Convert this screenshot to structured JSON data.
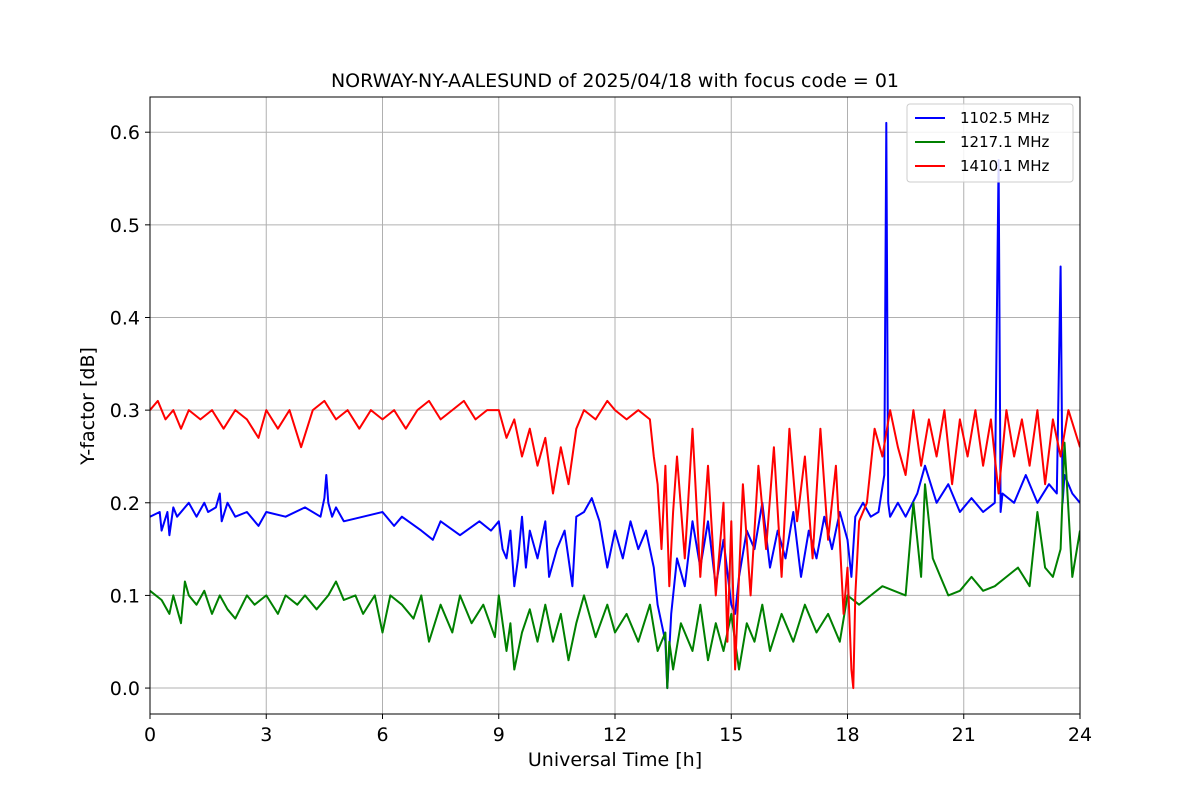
{
  "chart_data": {
    "type": "line",
    "title": "NORWAY-NY-AALESUND of 2025/04/18 with focus code = 01",
    "xlabel": "Universal Time [h]",
    "ylabel": "Y-factor [dB]",
    "xlim": [
      0,
      24
    ],
    "ylim": [
      -0.028,
      0.638
    ],
    "xticks": [
      0,
      3,
      6,
      9,
      12,
      15,
      18,
      21,
      24
    ],
    "xtick_labels": [
      "0",
      "3",
      "6",
      "9",
      "12",
      "15",
      "18",
      "21",
      "24"
    ],
    "yticks": [
      0.0,
      0.1,
      0.2,
      0.3,
      0.4,
      0.5,
      0.6
    ],
    "ytick_labels": [
      "0.0",
      "0.1",
      "0.2",
      "0.3",
      "0.4",
      "0.5",
      "0.6"
    ],
    "grid": true,
    "legend_position": "top-right",
    "series": [
      {
        "name": "1102.5 MHz",
        "color": "#0000ff",
        "x": [
          0.0,
          0.25,
          0.3,
          0.45,
          0.5,
          0.6,
          0.7,
          1.0,
          1.2,
          1.4,
          1.5,
          1.7,
          1.8,
          1.85,
          2.0,
          2.2,
          2.5,
          2.8,
          3.0,
          3.5,
          4.0,
          4.4,
          4.5,
          4.55,
          4.6,
          4.7,
          4.8,
          5.0,
          5.5,
          6.0,
          6.3,
          6.5,
          7.0,
          7.3,
          7.5,
          8.0,
          8.5,
          8.8,
          9.0,
          9.1,
          9.2,
          9.3,
          9.4,
          9.5,
          9.6,
          9.7,
          9.8,
          10.0,
          10.2,
          10.3,
          10.5,
          10.7,
          10.9,
          11.0,
          11.2,
          11.4,
          11.6,
          11.8,
          12.0,
          12.2,
          12.4,
          12.6,
          12.8,
          13.0,
          13.1,
          13.2,
          13.3,
          13.35,
          13.45,
          13.6,
          13.8,
          14.0,
          14.2,
          14.4,
          14.6,
          14.8,
          15.0,
          15.1,
          15.2,
          15.4,
          15.6,
          15.8,
          16.0,
          16.2,
          16.4,
          16.6,
          16.8,
          17.0,
          17.2,
          17.4,
          17.6,
          17.8,
          18.0,
          18.1,
          18.2,
          18.4,
          18.6,
          18.8,
          18.95,
          19.0,
          19.05,
          19.1,
          19.3,
          19.5,
          19.8,
          20.0,
          20.3,
          20.6,
          20.9,
          21.2,
          21.5,
          21.8,
          21.9,
          21.95,
          22.0,
          22.3,
          22.6,
          22.9,
          23.2,
          23.4,
          23.5,
          23.55,
          23.6,
          23.8,
          24.0
        ],
        "values": [
          0.185,
          0.19,
          0.17,
          0.19,
          0.165,
          0.195,
          0.185,
          0.2,
          0.185,
          0.2,
          0.19,
          0.195,
          0.21,
          0.18,
          0.2,
          0.185,
          0.19,
          0.175,
          0.19,
          0.185,
          0.195,
          0.185,
          0.205,
          0.23,
          0.2,
          0.185,
          0.195,
          0.18,
          0.185,
          0.19,
          0.175,
          0.185,
          0.17,
          0.16,
          0.18,
          0.165,
          0.18,
          0.17,
          0.18,
          0.15,
          0.14,
          0.17,
          0.11,
          0.14,
          0.185,
          0.13,
          0.17,
          0.14,
          0.18,
          0.12,
          0.15,
          0.17,
          0.11,
          0.185,
          0.19,
          0.205,
          0.18,
          0.13,
          0.17,
          0.14,
          0.18,
          0.15,
          0.17,
          0.13,
          0.09,
          0.07,
          0.05,
          0.0,
          0.08,
          0.14,
          0.11,
          0.18,
          0.13,
          0.18,
          0.11,
          0.16,
          0.09,
          0.08,
          0.12,
          0.17,
          0.15,
          0.2,
          0.13,
          0.17,
          0.14,
          0.19,
          0.12,
          0.17,
          0.14,
          0.185,
          0.15,
          0.19,
          0.16,
          0.12,
          0.185,
          0.2,
          0.185,
          0.19,
          0.23,
          0.61,
          0.2,
          0.185,
          0.2,
          0.185,
          0.21,
          0.24,
          0.2,
          0.22,
          0.19,
          0.205,
          0.19,
          0.2,
          0.57,
          0.19,
          0.21,
          0.2,
          0.23,
          0.2,
          0.22,
          0.21,
          0.455,
          0.2,
          0.23,
          0.21,
          0.2
        ]
      },
      {
        "name": "1217.1 MHz",
        "color": "#008000",
        "x": [
          0.0,
          0.3,
          0.5,
          0.6,
          0.8,
          0.9,
          1.0,
          1.2,
          1.4,
          1.6,
          1.8,
          2.0,
          2.2,
          2.5,
          2.7,
          3.0,
          3.3,
          3.5,
          3.8,
          4.0,
          4.3,
          4.6,
          4.8,
          5.0,
          5.3,
          5.5,
          5.8,
          6.0,
          6.2,
          6.5,
          6.8,
          7.0,
          7.2,
          7.5,
          7.8,
          8.0,
          8.3,
          8.6,
          8.9,
          9.0,
          9.2,
          9.3,
          9.4,
          9.6,
          9.8,
          10.0,
          10.2,
          10.4,
          10.6,
          10.8,
          11.0,
          11.2,
          11.5,
          11.8,
          12.0,
          12.3,
          12.6,
          12.9,
          13.1,
          13.3,
          13.35,
          13.4,
          13.5,
          13.7,
          14.0,
          14.2,
          14.4,
          14.6,
          14.8,
          15.0,
          15.2,
          15.4,
          15.6,
          15.8,
          16.0,
          16.3,
          16.6,
          16.9,
          17.2,
          17.5,
          17.8,
          18.0,
          18.3,
          18.6,
          18.9,
          19.2,
          19.5,
          19.7,
          19.8,
          19.9,
          20.0,
          20.2,
          20.4,
          20.6,
          20.9,
          21.2,
          21.5,
          21.8,
          22.1,
          22.4,
          22.7,
          22.9,
          23.1,
          23.3,
          23.5,
          23.6,
          23.8,
          24.0
        ],
        "values": [
          0.105,
          0.095,
          0.08,
          0.1,
          0.07,
          0.115,
          0.1,
          0.09,
          0.105,
          0.08,
          0.1,
          0.085,
          0.075,
          0.1,
          0.09,
          0.1,
          0.08,
          0.1,
          0.09,
          0.1,
          0.085,
          0.1,
          0.115,
          0.095,
          0.1,
          0.08,
          0.1,
          0.06,
          0.1,
          0.09,
          0.075,
          0.1,
          0.05,
          0.09,
          0.06,
          0.1,
          0.07,
          0.09,
          0.055,
          0.1,
          0.04,
          0.07,
          0.02,
          0.06,
          0.085,
          0.05,
          0.09,
          0.05,
          0.08,
          0.03,
          0.07,
          0.1,
          0.055,
          0.09,
          0.06,
          0.08,
          0.05,
          0.09,
          0.04,
          0.06,
          0.0,
          0.05,
          0.02,
          0.07,
          0.04,
          0.09,
          0.03,
          0.07,
          0.04,
          0.08,
          0.02,
          0.07,
          0.05,
          0.09,
          0.04,
          0.08,
          0.05,
          0.09,
          0.06,
          0.08,
          0.05,
          0.1,
          0.09,
          0.1,
          0.11,
          0.105,
          0.1,
          0.2,
          0.16,
          0.12,
          0.22,
          0.14,
          0.12,
          0.1,
          0.105,
          0.12,
          0.105,
          0.11,
          0.12,
          0.13,
          0.11,
          0.19,
          0.13,
          0.12,
          0.15,
          0.265,
          0.12,
          0.17
        ]
      },
      {
        "name": "1410.1 MHz",
        "color": "#ff0000",
        "x": [
          0.0,
          0.2,
          0.4,
          0.6,
          0.8,
          1.0,
          1.3,
          1.6,
          1.9,
          2.2,
          2.5,
          2.8,
          3.0,
          3.3,
          3.6,
          3.9,
          4.2,
          4.5,
          4.8,
          5.1,
          5.4,
          5.7,
          6.0,
          6.3,
          6.6,
          6.9,
          7.2,
          7.5,
          7.8,
          8.1,
          8.4,
          8.7,
          9.0,
          9.2,
          9.4,
          9.6,
          9.8,
          10.0,
          10.2,
          10.4,
          10.6,
          10.8,
          11.0,
          11.2,
          11.5,
          11.8,
          12.0,
          12.3,
          12.6,
          12.9,
          13.0,
          13.1,
          13.2,
          13.3,
          13.4,
          13.5,
          13.6,
          13.8,
          14.0,
          14.2,
          14.4,
          14.6,
          14.8,
          14.9,
          15.0,
          15.1,
          15.2,
          15.3,
          15.5,
          15.7,
          15.9,
          16.1,
          16.3,
          16.5,
          16.7,
          16.9,
          17.1,
          17.3,
          17.5,
          17.7,
          17.9,
          18.0,
          18.1,
          18.15,
          18.2,
          18.3,
          18.5,
          18.7,
          18.9,
          19.1,
          19.3,
          19.5,
          19.7,
          19.9,
          20.1,
          20.3,
          20.5,
          20.7,
          20.9,
          21.1,
          21.3,
          21.5,
          21.7,
          21.9,
          22.1,
          22.3,
          22.5,
          22.7,
          22.9,
          23.1,
          23.3,
          23.5,
          23.7,
          24.0
        ],
        "values": [
          0.3,
          0.31,
          0.29,
          0.3,
          0.28,
          0.3,
          0.29,
          0.3,
          0.28,
          0.3,
          0.29,
          0.27,
          0.3,
          0.28,
          0.3,
          0.26,
          0.3,
          0.31,
          0.29,
          0.3,
          0.28,
          0.3,
          0.29,
          0.3,
          0.28,
          0.3,
          0.31,
          0.29,
          0.3,
          0.31,
          0.29,
          0.3,
          0.3,
          0.27,
          0.29,
          0.25,
          0.28,
          0.24,
          0.27,
          0.21,
          0.26,
          0.22,
          0.28,
          0.3,
          0.29,
          0.31,
          0.3,
          0.29,
          0.3,
          0.29,
          0.25,
          0.22,
          0.15,
          0.24,
          0.11,
          0.19,
          0.25,
          0.14,
          0.28,
          0.12,
          0.24,
          0.1,
          0.2,
          0.05,
          0.18,
          0.02,
          0.12,
          0.22,
          0.1,
          0.24,
          0.15,
          0.26,
          0.12,
          0.28,
          0.18,
          0.25,
          0.14,
          0.28,
          0.16,
          0.24,
          0.08,
          0.13,
          0.02,
          0.0,
          0.1,
          0.18,
          0.2,
          0.28,
          0.25,
          0.3,
          0.26,
          0.23,
          0.3,
          0.24,
          0.29,
          0.25,
          0.3,
          0.22,
          0.29,
          0.25,
          0.3,
          0.24,
          0.29,
          0.21,
          0.3,
          0.25,
          0.29,
          0.24,
          0.3,
          0.22,
          0.29,
          0.25,
          0.3,
          0.26
        ]
      }
    ]
  }
}
